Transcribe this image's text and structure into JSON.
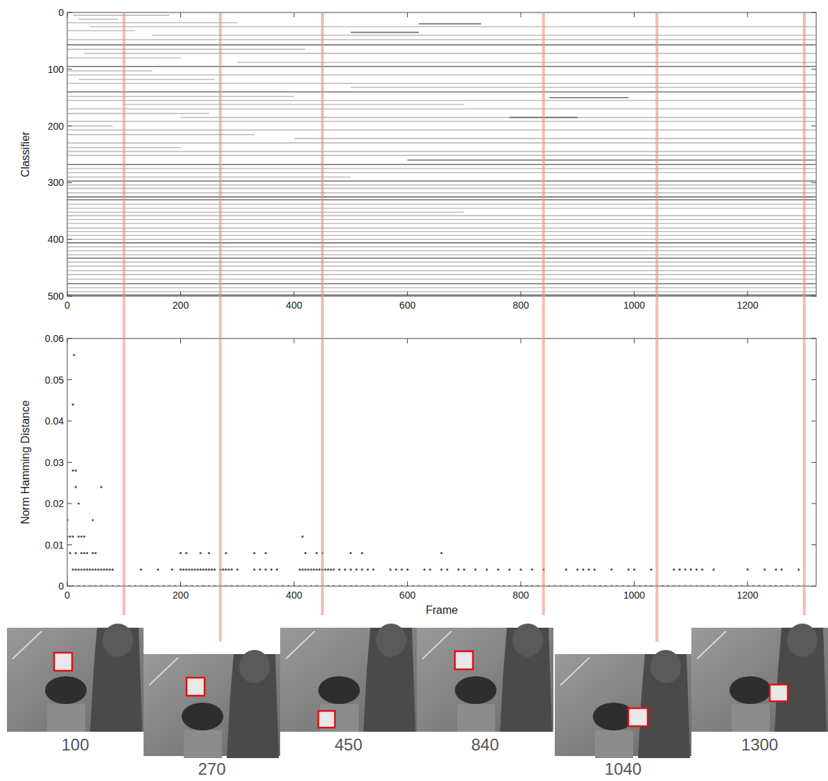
{
  "chart_data": [
    {
      "type": "raster",
      "ylabel": "Classifier",
      "xlim": [
        0,
        1321
      ],
      "xticks": [
        0,
        200,
        400,
        600,
        800,
        1000,
        1200
      ],
      "ylim": [
        0,
        500
      ],
      "yticks": [
        0,
        100,
        200,
        300,
        400,
        500
      ],
      "segments": [
        [
          5,
          10,
          180,
          1
        ],
        [
          12,
          20,
          90,
          1
        ],
        [
          18,
          0,
          300,
          1
        ],
        [
          20,
          620,
          730,
          2
        ],
        [
          25,
          40,
          1320,
          1
        ],
        [
          32,
          0,
          120,
          1
        ],
        [
          35,
          500,
          620,
          2
        ],
        [
          40,
          150,
          1320,
          1
        ],
        [
          48,
          0,
          1320,
          1
        ],
        [
          57,
          0,
          1320,
          2
        ],
        [
          65,
          0,
          420,
          1
        ],
        [
          72,
          30,
          1320,
          1
        ],
        [
          80,
          0,
          200,
          1
        ],
        [
          88,
          300,
          1320,
          1
        ],
        [
          95,
          0,
          1320,
          2
        ],
        [
          103,
          0,
          150,
          1
        ],
        [
          110,
          0,
          1320,
          1
        ],
        [
          118,
          20,
          260,
          1
        ],
        [
          125,
          0,
          1320,
          1
        ],
        [
          132,
          500,
          1320,
          1
        ],
        [
          140,
          0,
          1320,
          2
        ],
        [
          148,
          0,
          400,
          1
        ],
        [
          150,
          850,
          990,
          2
        ],
        [
          155,
          0,
          1320,
          1
        ],
        [
          162,
          100,
          700,
          1
        ],
        [
          170,
          0,
          1320,
          1
        ],
        [
          178,
          0,
          250,
          1
        ],
        [
          185,
          200,
          1320,
          1
        ],
        [
          185,
          780,
          900,
          2
        ],
        [
          192,
          0,
          1320,
          1
        ],
        [
          200,
          0,
          80,
          1
        ],
        [
          207,
          0,
          1320,
          1
        ],
        [
          215,
          0,
          330,
          1
        ],
        [
          222,
          400,
          1320,
          1
        ],
        [
          230,
          0,
          1320,
          1
        ],
        [
          238,
          0,
          200,
          1
        ],
        [
          245,
          0,
          1320,
          1
        ],
        [
          252,
          0,
          1320,
          1
        ],
        [
          260,
          600,
          1320,
          2
        ],
        [
          268,
          0,
          1320,
          2
        ],
        [
          275,
          0,
          1320,
          1
        ],
        [
          282,
          0,
          1320,
          1
        ],
        [
          290,
          0,
          500,
          1
        ],
        [
          297,
          0,
          1320,
          2
        ],
        [
          304,
          0,
          1320,
          1
        ],
        [
          310,
          0,
          1320,
          1
        ],
        [
          318,
          0,
          1320,
          1
        ],
        [
          325,
          0,
          1320,
          2
        ],
        [
          330,
          0,
          1320,
          2
        ],
        [
          338,
          0,
          1320,
          1
        ],
        [
          345,
          0,
          1320,
          1
        ],
        [
          352,
          0,
          700,
          1
        ],
        [
          358,
          0,
          1320,
          1
        ],
        [
          365,
          0,
          1320,
          1
        ],
        [
          372,
          0,
          1320,
          1
        ],
        [
          380,
          0,
          1320,
          1
        ],
        [
          386,
          0,
          1320,
          1
        ],
        [
          393,
          0,
          1320,
          1
        ],
        [
          400,
          0,
          1320,
          1
        ],
        [
          406,
          0,
          1320,
          2
        ],
        [
          413,
          0,
          1320,
          1
        ],
        [
          420,
          0,
          1320,
          1
        ],
        [
          427,
          0,
          1320,
          1
        ],
        [
          433,
          0,
          1320,
          2
        ],
        [
          440,
          0,
          1320,
          1
        ],
        [
          447,
          0,
          1320,
          1
        ],
        [
          455,
          0,
          1320,
          1
        ],
        [
          462,
          0,
          1320,
          1
        ],
        [
          470,
          0,
          1320,
          1
        ],
        [
          478,
          0,
          1320,
          2
        ],
        [
          485,
          0,
          1320,
          1
        ],
        [
          492,
          0,
          1320,
          1
        ],
        [
          498,
          0,
          1320,
          2
        ]
      ]
    },
    {
      "type": "scatter",
      "xlabel": "Frame",
      "ylabel": "Norm Hamming Distance",
      "xlim": [
        0,
        1321
      ],
      "xticks": [
        0,
        200,
        400,
        600,
        800,
        1000,
        1200
      ],
      "ylim": [
        0,
        0.06
      ],
      "yticks": [
        0,
        0.01,
        0.02,
        0.03,
        0.04,
        0.05,
        0.06
      ],
      "marker": "dot",
      "color": "#555555",
      "series": [
        {
          "x": [
            0,
            10,
            20,
            30,
            40,
            50,
            60,
            70,
            80,
            90,
            100,
            110,
            120,
            130,
            140,
            150,
            160,
            170,
            180,
            190,
            200,
            210,
            220,
            230,
            240,
            250,
            260,
            270,
            280,
            290,
            300,
            310,
            320,
            330,
            340,
            350,
            360,
            370,
            380,
            390,
            400,
            410,
            420,
            430,
            440,
            450,
            460,
            470,
            480,
            490,
            500,
            510,
            520,
            530,
            540,
            550,
            560,
            570,
            580,
            590,
            600,
            610,
            620,
            630,
            640,
            650,
            660,
            670,
            680,
            690,
            700,
            710,
            720,
            730,
            740,
            750,
            760,
            770,
            780,
            790,
            800,
            810,
            820,
            830,
            840,
            850,
            860,
            870,
            880,
            890,
            900,
            910,
            920,
            930,
            940,
            950,
            960,
            970,
            980,
            990,
            1000,
            1010,
            1020,
            1030,
            1040,
            1050,
            1060,
            1070,
            1080,
            1090,
            1100,
            1110,
            1120,
            1130,
            1140,
            1150,
            1160,
            1170,
            1180,
            1190,
            1200,
            1210,
            1220,
            1230,
            1240,
            1250,
            1260,
            1270,
            1280,
            1290,
            1300
          ],
          "values": [
            0,
            0,
            0,
            0,
            0,
            0,
            0,
            0,
            0,
            0,
            0,
            0,
            0,
            0,
            0,
            0,
            0,
            0,
            0,
            0,
            0,
            0,
            0,
            0,
            0,
            0,
            0,
            0,
            0,
            0,
            0,
            0,
            0,
            0,
            0,
            0,
            0,
            0,
            0,
            0,
            0,
            0,
            0,
            0,
            0,
            0,
            0,
            0,
            0,
            0,
            0,
            0,
            0,
            0,
            0,
            0,
            0,
            0,
            0,
            0,
            0,
            0,
            0,
            0,
            0,
            0,
            0,
            0,
            0,
            0,
            0,
            0,
            0,
            0,
            0,
            0,
            0,
            0,
            0,
            0,
            0,
            0,
            0,
            0,
            0,
            0,
            0,
            0,
            0,
            0,
            0,
            0,
            0,
            0,
            0,
            0,
            0,
            0,
            0,
            0,
            0,
            0,
            0,
            0,
            0,
            0,
            0,
            0,
            0,
            0,
            0,
            0,
            0,
            0,
            0,
            0,
            0,
            0,
            0,
            0,
            0,
            0,
            0,
            0,
            0,
            0,
            0,
            0,
            0,
            0,
            0
          ]
        },
        {
          "x": [
            10,
            15,
            20,
            25,
            30,
            35,
            40,
            45,
            50,
            55,
            60,
            65,
            70,
            75,
            80,
            130,
            160,
            185,
            200,
            205,
            210,
            215,
            220,
            225,
            230,
            235,
            240,
            245,
            250,
            255,
            260,
            270,
            275,
            280,
            285,
            290,
            300,
            330,
            340,
            350,
            360,
            370,
            410,
            415,
            420,
            425,
            430,
            435,
            440,
            445,
            450,
            455,
            460,
            465,
            470,
            480,
            490,
            500,
            510,
            520,
            530,
            540,
            570,
            580,
            590,
            600,
            630,
            640,
            660,
            670,
            690,
            700,
            720,
            740,
            760,
            780,
            800,
            820,
            840,
            880,
            900,
            910,
            920,
            930,
            960,
            990,
            1000,
            1030,
            1070,
            1080,
            1090,
            1100,
            1110,
            1120,
            1140,
            1200,
            1230,
            1250,
            1260,
            1290
          ],
          "values": [
            0.004,
            0.004,
            0.004,
            0.004,
            0.004,
            0.004,
            0.004,
            0.004,
            0.004,
            0.004,
            0.004,
            0.004,
            0.004,
            0.004,
            0.004,
            0.004,
            0.004,
            0.004,
            0.004,
            0.004,
            0.004,
            0.004,
            0.004,
            0.004,
            0.004,
            0.004,
            0.004,
            0.004,
            0.004,
            0.004,
            0.004,
            0.004,
            0.004,
            0.004,
            0.004,
            0.004,
            0.004,
            0.004,
            0.004,
            0.004,
            0.004,
            0.004,
            0.004,
            0.004,
            0.004,
            0.004,
            0.004,
            0.004,
            0.004,
            0.004,
            0.004,
            0.004,
            0.004,
            0.004,
            0.004,
            0.004,
            0.004,
            0.004,
            0.004,
            0.004,
            0.004,
            0.004,
            0.004,
            0.004,
            0.004,
            0.004,
            0.004,
            0.004,
            0.004,
            0.004,
            0.004,
            0.004,
            0.004,
            0.004,
            0.004,
            0.004,
            0.004,
            0.004,
            0.004,
            0.004,
            0.004,
            0.004,
            0.004,
            0.004,
            0.004,
            0.004,
            0.004,
            0.004,
            0.004,
            0.004,
            0.004,
            0.004,
            0.004,
            0.004,
            0.004,
            0.004,
            0.004,
            0.004,
            0.004,
            0.004
          ]
        },
        {
          "x": [
            5,
            15,
            25,
            30,
            35,
            45,
            50,
            200,
            210,
            235,
            250,
            280,
            330,
            350,
            420,
            440,
            450,
            500,
            520,
            660
          ],
          "values": [
            0.008,
            0.008,
            0.008,
            0.008,
            0.008,
            0.008,
            0.008,
            0.008,
            0.008,
            0.008,
            0.008,
            0.008,
            0.008,
            0.008,
            0.008,
            0.008,
            0.008,
            0.008,
            0.008,
            0.008
          ]
        },
        {
          "x": [
            0,
            5,
            10,
            20,
            25,
            30,
            415
          ],
          "values": [
            0.012,
            0.012,
            0.012,
            0.012,
            0.012,
            0.012,
            0.012
          ]
        },
        {
          "x": [
            0,
            45
          ],
          "values": [
            0.016,
            0.016
          ]
        },
        {
          "x": [
            20
          ],
          "values": [
            0.02
          ]
        },
        {
          "x": [
            15,
            60
          ],
          "values": [
            0.024,
            0.024
          ]
        },
        {
          "x": [
            10,
            15
          ],
          "values": [
            0.028,
            0.028
          ]
        },
        {
          "x": [
            10
          ],
          "values": [
            0.044
          ]
        },
        {
          "x": [
            12
          ],
          "values": [
            0.056
          ]
        }
      ]
    }
  ],
  "snapshots": {
    "frames": [
      100,
      270,
      450,
      840,
      1040,
      1300
    ]
  }
}
